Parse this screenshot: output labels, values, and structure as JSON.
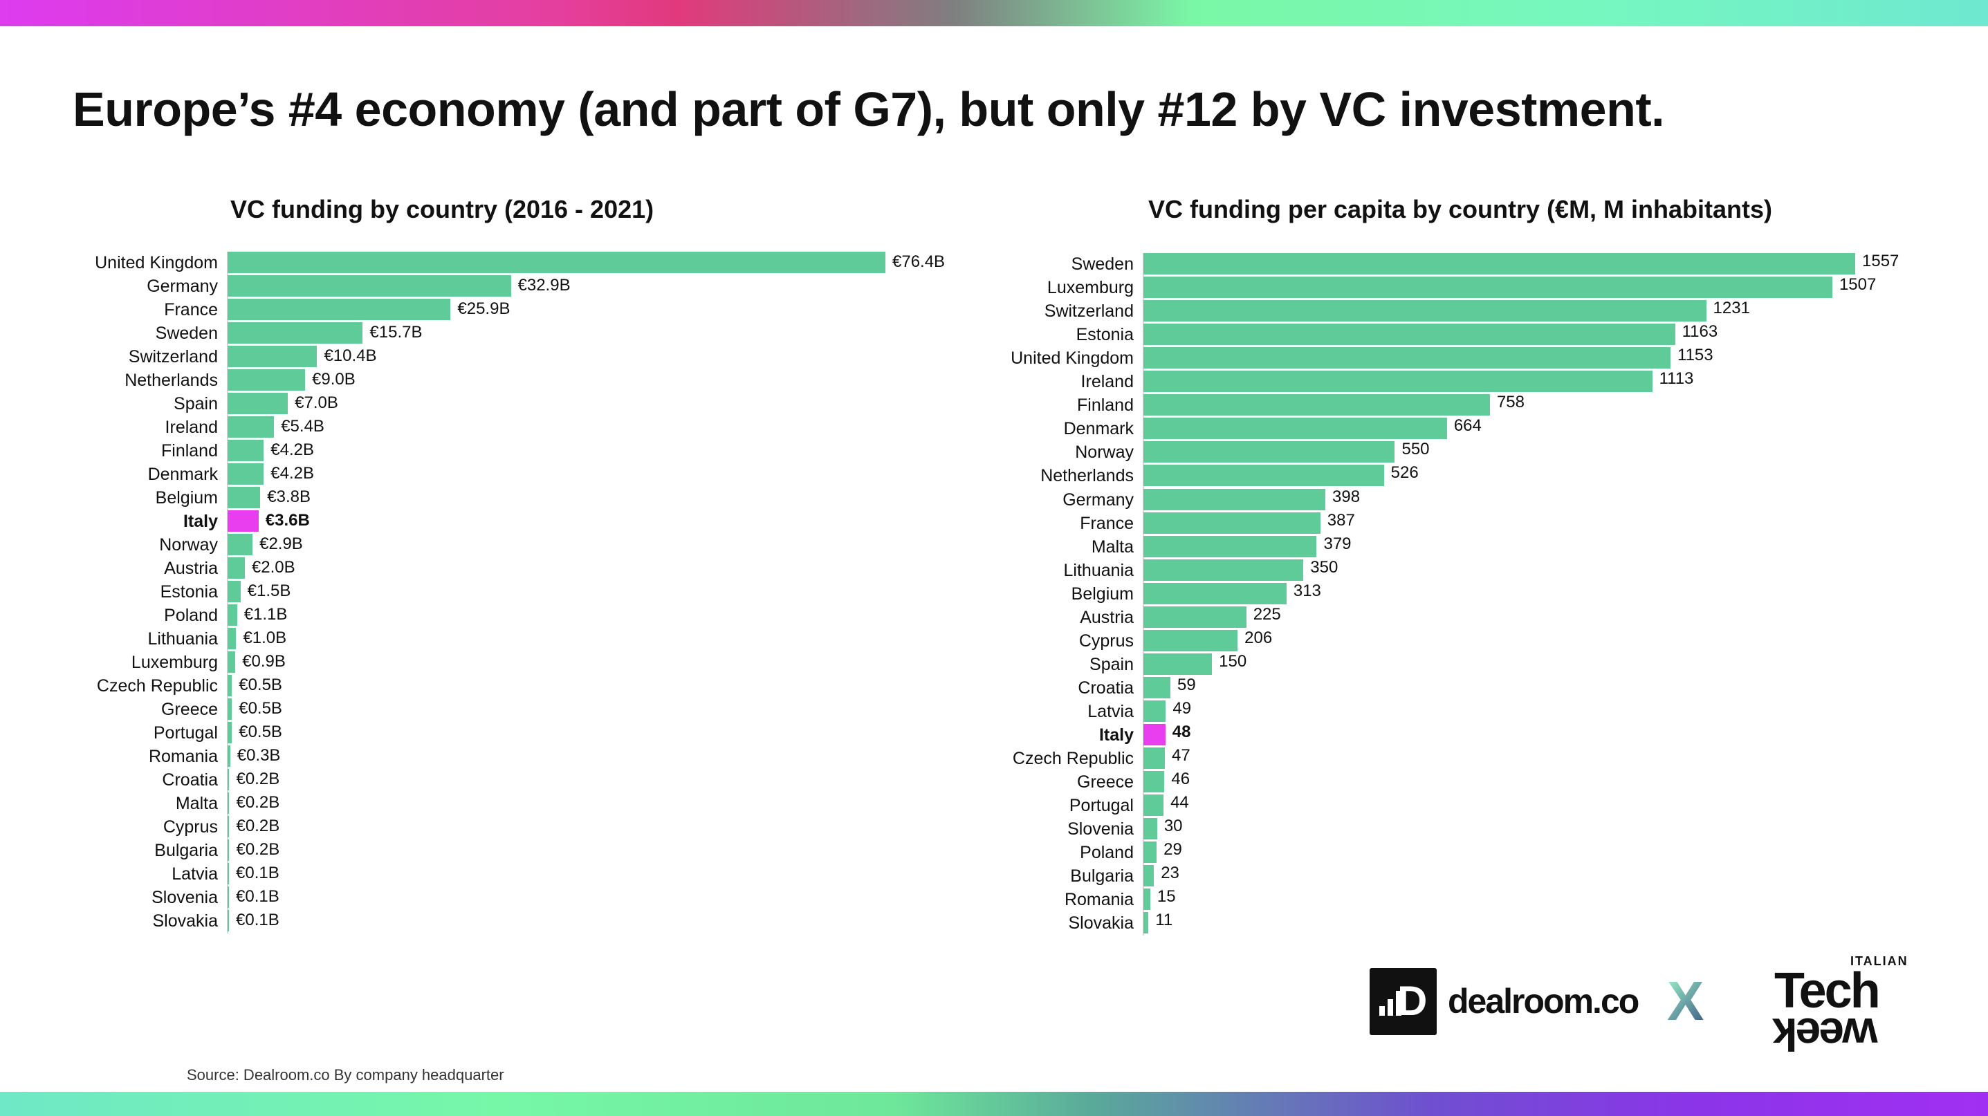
{
  "title": "Europe’s #4 economy (and part of G7), but only #12 by VC investment.",
  "source": "Source: Dealroom.co  By company headquarter",
  "logos": {
    "dealroom": "dealroom.co",
    "separator": "X",
    "itw_top": "ITALIAN",
    "itw_main": "Tech",
    "itw_bottom": "week"
  },
  "colors": {
    "bar": "#5ecb98",
    "highlight": "#e83ef0"
  },
  "chart_data": [
    {
      "type": "bar",
      "orientation": "horizontal",
      "title": "VC funding by country (2016 - 2021)",
      "unit": "€B",
      "highlight": "Italy",
      "categories": [
        "United Kingdom",
        "Germany",
        "France",
        "Sweden",
        "Switzerland",
        "Netherlands",
        "Spain",
        "Ireland",
        "Finland",
        "Denmark",
        "Belgium",
        "Italy",
        "Norway",
        "Austria",
        "Estonia",
        "Poland",
        "Lithuania",
        "Luxemburg",
        "Czech Republic",
        "Greece",
        "Portugal",
        "Romania",
        "Croatia",
        "Malta",
        "Cyprus",
        "Bulgaria",
        "Latvia",
        "Slovenia",
        "Slovakia"
      ],
      "values": [
        76.4,
        32.9,
        25.9,
        15.7,
        10.4,
        9.0,
        7.0,
        5.4,
        4.2,
        4.2,
        3.8,
        3.6,
        2.9,
        2.0,
        1.5,
        1.1,
        1.0,
        0.9,
        0.5,
        0.5,
        0.5,
        0.3,
        0.2,
        0.2,
        0.2,
        0.2,
        0.1,
        0.1,
        0.1
      ],
      "labels": [
        "€76.4B",
        "€32.9B",
        "€25.9B",
        "€15.7B",
        "€10.4B",
        "€9.0B",
        "€7.0B",
        "€5.4B",
        "€4.2B",
        "€4.2B",
        "€3.8B",
        "€3.6B",
        "€2.9B",
        "€2.0B",
        "€1.5B",
        "€1.1B",
        "€1.0B",
        "€0.9B",
        "€0.5B",
        "€0.5B",
        "€0.5B",
        "€0.3B",
        "€0.2B",
        "€0.2B",
        "€0.2B",
        "€0.2B",
        "€0.1B",
        "€0.1B",
        "€0.1B"
      ]
    },
    {
      "type": "bar",
      "orientation": "horizontal",
      "title": "VC funding per capita by country (€M, M inhabitants)",
      "unit": "€ per capita",
      "highlight": "Italy",
      "categories": [
        "Sweden",
        "Luxemburg",
        "Switzerland",
        "Estonia",
        "United Kingdom",
        "Ireland",
        "Finland",
        "Denmark",
        "Norway",
        "Netherlands",
        "Germany",
        "France",
        "Malta",
        "Lithuania",
        "Belgium",
        "Austria",
        "Cyprus",
        "Spain",
        "Croatia",
        "Latvia",
        "Italy",
        "Czech Republic",
        "Greece",
        "Portugal",
        "Slovenia",
        "Poland",
        "Bulgaria",
        "Romania",
        "Slovakia"
      ],
      "values": [
        1557,
        1507,
        1231,
        1163,
        1153,
        1113,
        758,
        664,
        550,
        526,
        398,
        387,
        379,
        350,
        313,
        225,
        206,
        150,
        59,
        49,
        48,
        47,
        46,
        44,
        30,
        29,
        23,
        15,
        11
      ],
      "labels": [
        "1557",
        "1507",
        "1231",
        "1163",
        "1153",
        "1113",
        "758",
        "664",
        "550",
        "526",
        "398",
        "387",
        "379",
        "350",
        "313",
        "225",
        "206",
        "150",
        "59",
        "49",
        "48",
        "47",
        "46",
        "44",
        "30",
        "29",
        "23",
        "15",
        "11"
      ]
    }
  ]
}
